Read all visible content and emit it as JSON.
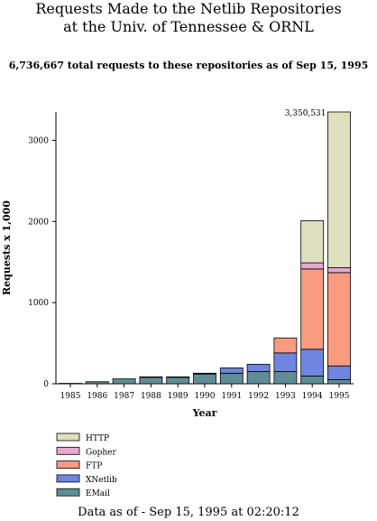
{
  "title_line1": "Requests Made to the Netlib Repositories",
  "title_line2": "at the Univ. of Tennessee & ORNL",
  "subtitle": "6,736,667 total requests to these repositories as of Sep 15, 1995",
  "footer": "Data as of - Sep 15, 1995 at 02:20:12",
  "chart_data": {
    "type": "bar",
    "stacked": true,
    "categories": [
      "1985",
      "1986",
      "1987",
      "1988",
      "1989",
      "1990",
      "1991",
      "1992",
      "1993",
      "1994",
      "1995"
    ],
    "xlabel": "Year",
    "ylabel": "Requests x 1,000",
    "ylim": [
      0,
      3350
    ],
    "yticks": [
      0,
      1000,
      2000,
      3000
    ],
    "annotation": {
      "category": "1995",
      "text": "3,350,531"
    },
    "legend_position": "bottom-left",
    "series": [
      {
        "name": "EMail",
        "color": "#5f8d96",
        "values": [
          5,
          25,
          60,
          80,
          80,
          120,
          130,
          150,
          150,
          95,
          50
        ]
      },
      {
        "name": "XNetlib",
        "color": "#6f85e0",
        "values": [
          0,
          0,
          0,
          5,
          5,
          10,
          65,
          90,
          230,
          330,
          170
        ]
      },
      {
        "name": "FTP",
        "color": "#fa9b80",
        "values": [
          0,
          0,
          0,
          0,
          0,
          0,
          0,
          0,
          185,
          990,
          1150
        ]
      },
      {
        "name": "Gopher",
        "color": "#e6a8d0",
        "values": [
          0,
          0,
          0,
          0,
          0,
          0,
          0,
          0,
          0,
          75,
          60
        ]
      },
      {
        "name": "HTTP",
        "color": "#dedfbf",
        "values": [
          0,
          0,
          0,
          0,
          0,
          0,
          0,
          0,
          0,
          520,
          1920
        ]
      }
    ]
  }
}
